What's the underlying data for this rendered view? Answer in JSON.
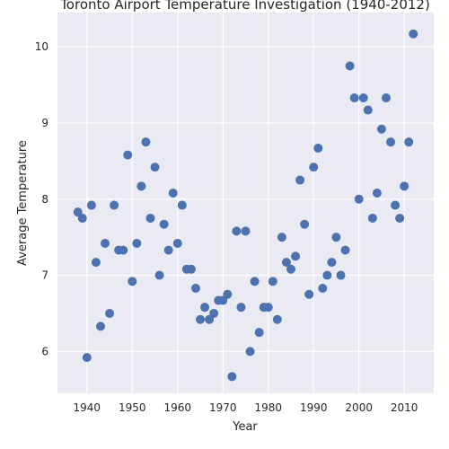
{
  "chart_data": {
    "type": "scatter",
    "title": "Toronto Airport Temperature Investigation (1940-2012)",
    "xlabel": "Year",
    "ylabel": "Average Temperature",
    "xlim": [
      1933.5,
      2016.5
    ],
    "ylim": [
      5.45,
      10.45
    ],
    "xticks": [
      1940,
      1950,
      1960,
      1970,
      1980,
      1990,
      2000,
      2010
    ],
    "yticks": [
      6,
      7,
      8,
      9,
      10
    ],
    "grid": true,
    "background_color": "#eaeaf2",
    "marker_color": "#4c72b0",
    "x": [
      1938,
      1939,
      1940,
      1941,
      1942,
      1943,
      1944,
      1945,
      1946,
      1947,
      1948,
      1949,
      1950,
      1951,
      1952,
      1953,
      1954,
      1955,
      1956,
      1957,
      1958,
      1959,
      1960,
      1961,
      1962,
      1963,
      1964,
      1965,
      1966,
      1967,
      1968,
      1969,
      1970,
      1971,
      1972,
      1973,
      1974,
      1975,
      1976,
      1977,
      1978,
      1979,
      1980,
      1981,
      1982,
      1983,
      1984,
      1985,
      1986,
      1987,
      1988,
      1989,
      1990,
      1991,
      1992,
      1993,
      1994,
      1995,
      1996,
      1997,
      1998,
      1999,
      2000,
      2001,
      2002,
      2003,
      2004,
      2005,
      2006,
      2007,
      2008,
      2009,
      2010,
      2011,
      2012
    ],
    "y": [
      7.83,
      7.75,
      5.92,
      7.92,
      7.17,
      6.33,
      7.42,
      6.5,
      7.92,
      7.33,
      7.33,
      8.58,
      6.92,
      7.42,
      8.17,
      8.75,
      7.75,
      8.42,
      7.0,
      7.67,
      7.33,
      8.08,
      7.42,
      7.92,
      7.08,
      7.08,
      6.83,
      6.42,
      6.58,
      6.42,
      6.5,
      6.67,
      6.67,
      6.75,
      5.67,
      7.58,
      6.58,
      7.58,
      6.0,
      6.92,
      6.25,
      6.58,
      6.58,
      6.92,
      6.42,
      7.5,
      7.17,
      7.08,
      7.25,
      8.25,
      7.67,
      6.75,
      8.42,
      8.67,
      6.83,
      7.0,
      7.17,
      7.5,
      7.0,
      7.33,
      9.75,
      9.33,
      8.0,
      9.33,
      9.17,
      7.75,
      8.08,
      8.92,
      9.33,
      8.75,
      7.92,
      7.75,
      8.17,
      8.75,
      10.17
    ]
  }
}
